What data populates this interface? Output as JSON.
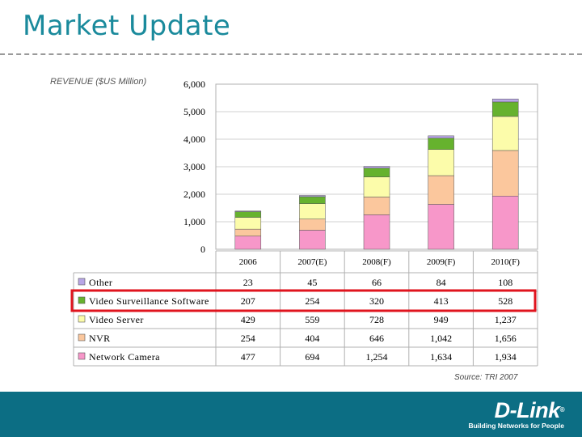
{
  "slide": {
    "title": "Market Update",
    "source": "Source: TRI 2007"
  },
  "footer": {
    "logo_text": "D-Link",
    "logo_reg": "®",
    "tagline": "Building Networks for People",
    "bg_color": "#0c6e84"
  },
  "highlight_row": "Video Surveillance Software",
  "highlight_color": "#e0141e",
  "chart_data": {
    "type": "bar",
    "stacked": true,
    "ylabel": "REVENUE ($US Million)",
    "ylim": [
      0,
      6000
    ],
    "yticks": [
      "0",
      "1,000",
      "2,000",
      "3,000",
      "4,000",
      "5,000",
      "6,000"
    ],
    "yticks_values": [
      0,
      1000,
      2000,
      3000,
      4000,
      5000,
      6000
    ],
    "grid": true,
    "categories": [
      "2006",
      "2007(E)",
      "2008(F)",
      "2009(F)",
      "2010(F)"
    ],
    "series": [
      {
        "name": "Network Camera",
        "color": "#f797c9",
        "values": [
          477,
          694,
          1254,
          1634,
          1934
        ],
        "labels": [
          "477",
          "694",
          "1,254",
          "1,634",
          "1,934"
        ]
      },
      {
        "name": "NVR",
        "color": "#fbc79d",
        "values": [
          254,
          404,
          646,
          1042,
          1656
        ],
        "labels": [
          "254",
          "404",
          "646",
          "1,042",
          "1,656"
        ]
      },
      {
        "name": "Video Server",
        "color": "#fcfcaa",
        "values": [
          429,
          559,
          728,
          949,
          1237
        ],
        "labels": [
          "429",
          "559",
          "728",
          "949",
          "1,237"
        ]
      },
      {
        "name": "Video Surveillance Software",
        "color": "#66b22e",
        "values": [
          207,
          254,
          320,
          413,
          528
        ],
        "labels": [
          "207",
          "254",
          "320",
          "413",
          "528"
        ]
      },
      {
        "name": "Other",
        "color": "#b8a6e6",
        "values": [
          23,
          45,
          66,
          84,
          108
        ],
        "labels": [
          "23",
          "45",
          "66",
          "84",
          "108"
        ]
      }
    ],
    "table_row_order": [
      "Other",
      "Video Surveillance Software",
      "Video Server",
      "NVR",
      "Network Camera"
    ]
  }
}
